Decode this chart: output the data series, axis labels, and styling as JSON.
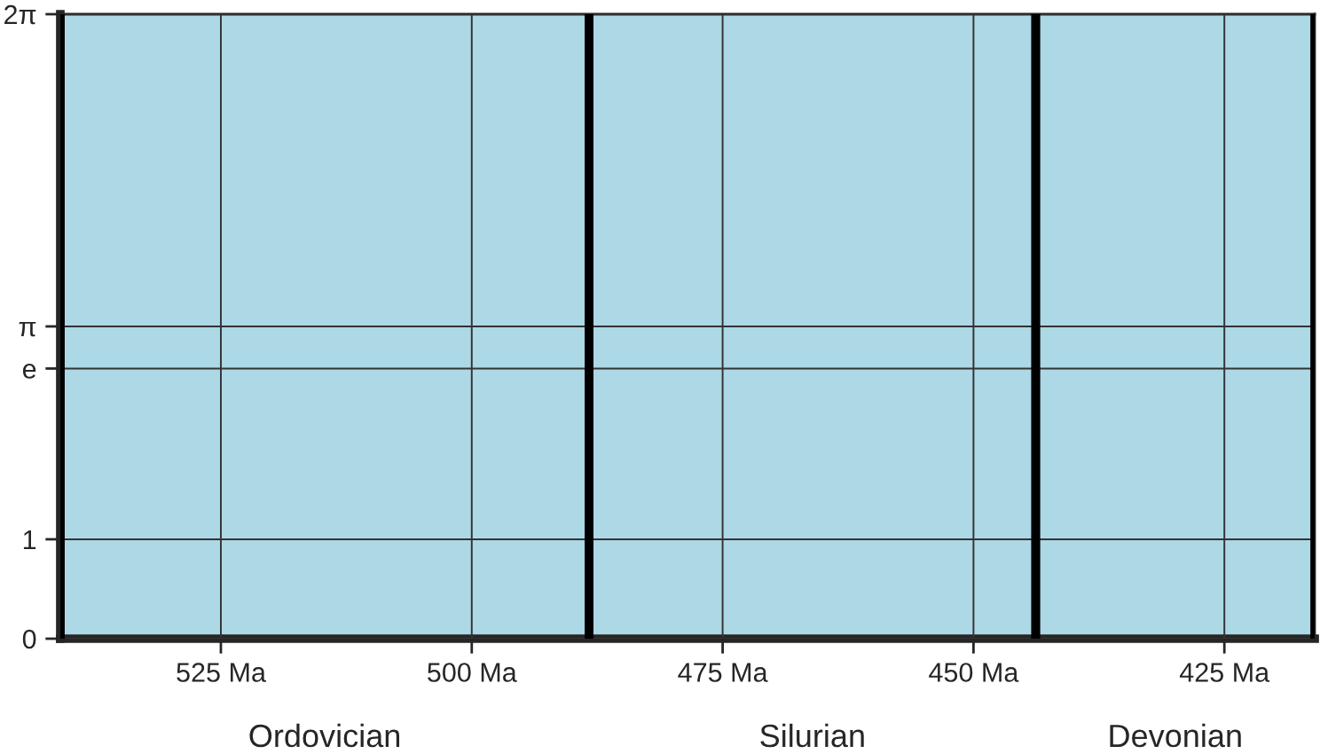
{
  "chart_data": {
    "type": "line",
    "xlim": [
      541,
      416
    ],
    "ylim": [
      0,
      6.283
    ],
    "xticks": [
      {
        "value": 525,
        "label": "525 Ma"
      },
      {
        "value": 500,
        "label": "500 Ma"
      },
      {
        "value": 475,
        "label": "475 Ma"
      },
      {
        "value": 450,
        "label": "450 Ma"
      },
      {
        "value": 425,
        "label": "425 Ma"
      }
    ],
    "yticks": [
      0,
      1,
      {
        "value": 2.718,
        "label": "e"
      },
      {
        "value": 3.1416,
        "label": "π"
      },
      {
        "value": 6.283,
        "label": "2π"
      }
    ],
    "grid": true,
    "bands": [
      {
        "axis": "x",
        "from": 541,
        "to": 488.3,
        "label": "Ordovician",
        "color": "#add8e6"
      },
      {
        "axis": "x",
        "from": 488.3,
        "to": 443.8,
        "label": "Silurian",
        "color": "#add8e6"
      },
      {
        "axis": "x",
        "from": 443.8,
        "to": 416,
        "label": "Devonian",
        "color": "#add8e6"
      }
    ]
  }
}
